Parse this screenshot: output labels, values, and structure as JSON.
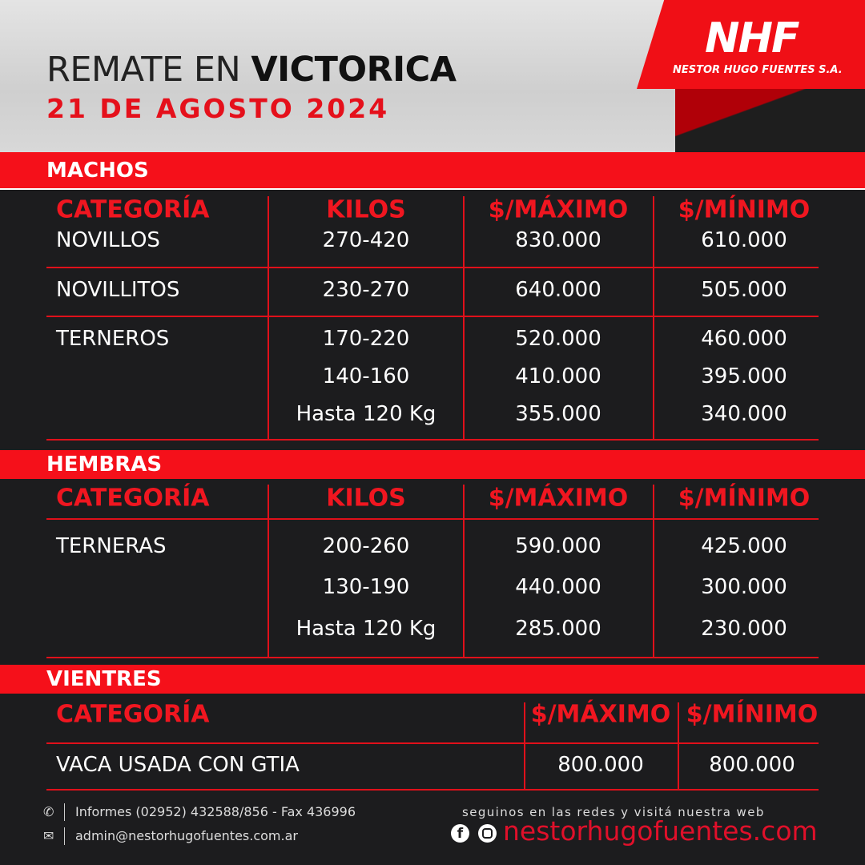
{
  "header": {
    "title_light": "REMATE EN ",
    "title_bold": "VICTORICA",
    "date": "21 DE AGOSTO 2024"
  },
  "logo": {
    "initials": "NHF",
    "name": "NESTOR HUGO FUENTES S.A."
  },
  "colors": {
    "accent": "#f5101a",
    "background": "#1c1c1e"
  },
  "columns": {
    "category": "CATEGORÍA",
    "kilos": "KILOS",
    "max": "$/MÁXIMO",
    "min": "$/MÍNIMO"
  },
  "machos": {
    "label": "MACHOS",
    "rows": [
      {
        "category": "NOVILLOS",
        "kilos": "270-420",
        "max": "830.000",
        "min": "610.000"
      },
      {
        "category": "NOVILLITOS",
        "kilos": "230-270",
        "max": "640.000",
        "min": "505.000"
      },
      {
        "category": "TERNEROS",
        "kilos": "170-220",
        "max": "520.000",
        "min": "460.000"
      },
      {
        "category": "",
        "kilos": "140-160",
        "max": "410.000",
        "min": "395.000"
      },
      {
        "category": "",
        "kilos": "Hasta 120 Kg",
        "max": "355.000",
        "min": "340.000"
      }
    ]
  },
  "hembras": {
    "label": "HEMBRAS",
    "rows": [
      {
        "category": "TERNERAS",
        "kilos": "200-260",
        "max": "590.000",
        "min": "425.000"
      },
      {
        "category": "",
        "kilos": "130-190",
        "max": "440.000",
        "min": "300.000"
      },
      {
        "category": "",
        "kilos": "Hasta 120 Kg",
        "max": "285.000",
        "min": "230.000"
      }
    ]
  },
  "vientres": {
    "label": "VIENTRES",
    "rows": [
      {
        "category": "VACA USADA CON GTIA",
        "max": "800.000",
        "min": "800.000"
      }
    ]
  },
  "footer": {
    "phone": "Informes (02952) 432588/856 - Fax 436996",
    "email": "admin@nestorhugofuentes.com.ar",
    "social_text": "seguinos en las redes y visitá nuestra web",
    "website": "nestorhugofuentes.com"
  },
  "icons": [
    "phone-icon",
    "mail-icon",
    "facebook-icon",
    "instagram-icon"
  ]
}
